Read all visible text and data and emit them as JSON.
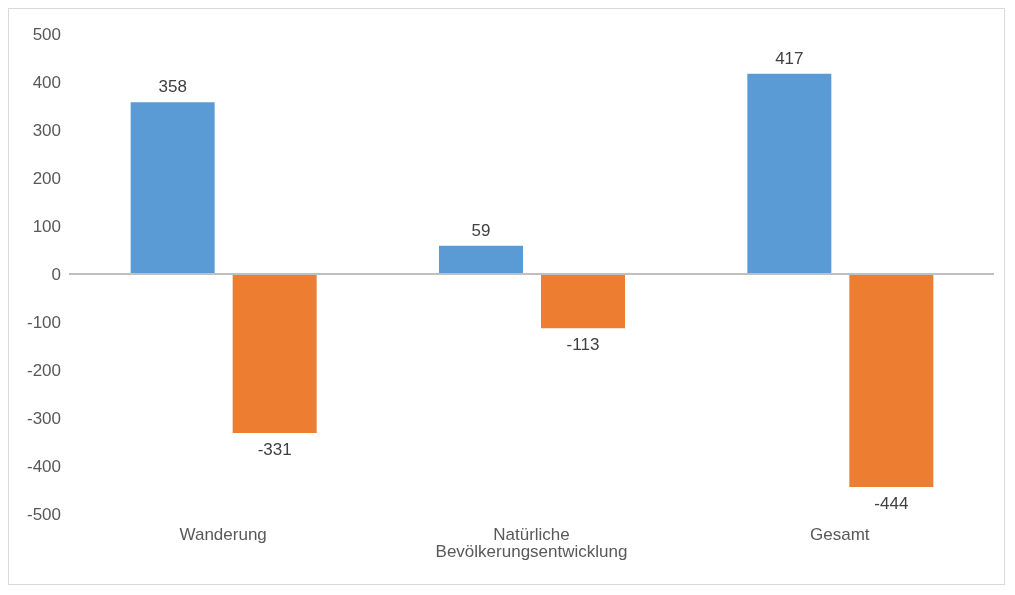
{
  "chart_data": {
    "type": "bar",
    "categories": [
      "Wanderung",
      "Natürliche Bevölkerungsentwicklung",
      "Gesamt"
    ],
    "series": [
      {
        "color": "#5b9bd5",
        "values": [
          358,
          59,
          417
        ]
      },
      {
        "color": "#ed7d31",
        "values": [
          -331,
          -113,
          -444
        ]
      }
    ],
    "ylim": [
      -500,
      500
    ],
    "yticks": [
      -500,
      -400,
      -300,
      -200,
      -100,
      0,
      100,
      200,
      300,
      400,
      500
    ],
    "ref_lines": [
      {
        "axis": "y",
        "value": 0,
        "color": "#bfbfbf"
      }
    ],
    "grid": false,
    "legend": false,
    "data_labels": true
  }
}
